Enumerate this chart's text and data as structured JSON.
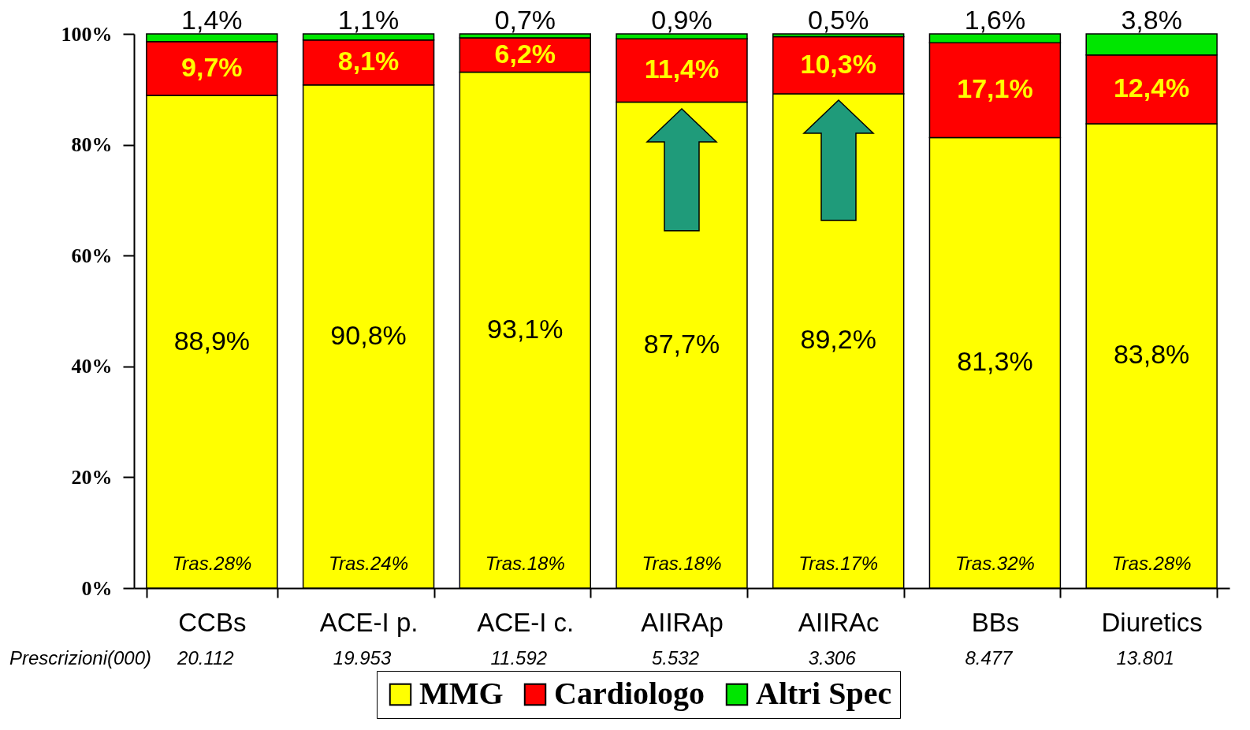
{
  "chart_data": {
    "type": "bar",
    "stacked": true,
    "categories": [
      "CCBs",
      "ACE-I p.",
      "ACE-I c.",
      "AIIRAp",
      "AIIRAc",
      "BBs",
      "Diuretics"
    ],
    "series": [
      {
        "name": "MMG",
        "color": "#ffff00",
        "values": [
          88.9,
          90.8,
          93.1,
          87.7,
          89.2,
          81.3,
          83.8
        ],
        "value_labels": [
          "88,9%",
          "90,8%",
          "93,1%",
          "87,7%",
          "89,2%",
          "81,3%",
          "83,8%"
        ]
      },
      {
        "name": "Cardiologo",
        "color": "#ff0000",
        "values": [
          9.7,
          8.1,
          6.2,
          11.4,
          10.3,
          17.1,
          12.4
        ],
        "value_labels": [
          "9,7%",
          "8,1%",
          "6,2%",
          "11,4%",
          "10,3%",
          "17,1%",
          "12,4%"
        ]
      },
      {
        "name": "Altri Spec",
        "color": "#00e600",
        "values": [
          1.4,
          1.1,
          0.7,
          0.9,
          0.5,
          1.6,
          3.8
        ],
        "value_labels": [
          "1,4%",
          "1,1%",
          "0,7%",
          "0,9%",
          "0,5%",
          "1,6%",
          "3,8%"
        ]
      }
    ],
    "ylim": [
      0,
      100
    ],
    "yticks": [
      {
        "value": 0,
        "label": "0%"
      },
      {
        "value": 20,
        "label": "20%"
      },
      {
        "value": 40,
        "label": "40%"
      },
      {
        "value": 60,
        "label": "60%"
      },
      {
        "value": 80,
        "label": "80%"
      },
      {
        "value": 100,
        "label": "100%"
      }
    ],
    "grid": false,
    "legend": "bottom",
    "annotations": [
      "Tras.28%",
      "Tras.24%",
      "Tras.18%",
      "Tras.18%",
      "Tras.17%",
      "Tras.32%",
      "Tras.28%",
      "Prescrizioni(000)",
      "20.112",
      "19.953",
      "11.592",
      "5.532",
      "3.306",
      "8.477",
      "13.801"
    ]
  }
}
